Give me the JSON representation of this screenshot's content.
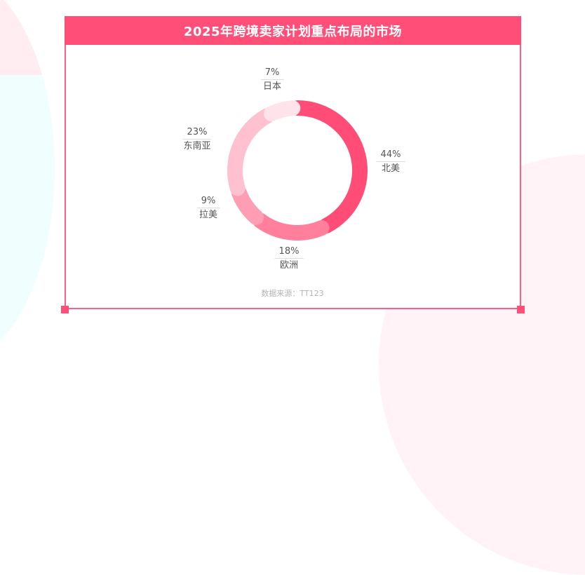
{
  "title": "2025年跨境卖家计划重点布局的市场",
  "source": "数据来源：TT123",
  "colors": {
    "header": "#ff4f78",
    "border": "#ff5f86",
    "north_america": "#ff4d78",
    "europe": "#ff7f9c",
    "latam": "#ff9db4",
    "southeast_asia": "#ffc1d0",
    "japan": "#ffe3ea"
  },
  "chart_data": {
    "type": "pie",
    "variant": "donut",
    "title": "2025年跨境卖家计划重点布局的市场",
    "categories": [
      "北美",
      "欧洲",
      "拉美",
      "东南亚",
      "日本"
    ],
    "values": [
      44,
      18,
      9,
      23,
      7
    ],
    "unit": "%",
    "labels": [
      {
        "name": "北美",
        "pct": "44%"
      },
      {
        "name": "欧洲",
        "pct": "18%"
      },
      {
        "name": "拉美",
        "pct": "9%"
      },
      {
        "name": "东南亚",
        "pct": "23%"
      },
      {
        "name": "日本",
        "pct": "7%"
      }
    ],
    "legend": "none",
    "source": "数据来源：TT123"
  }
}
